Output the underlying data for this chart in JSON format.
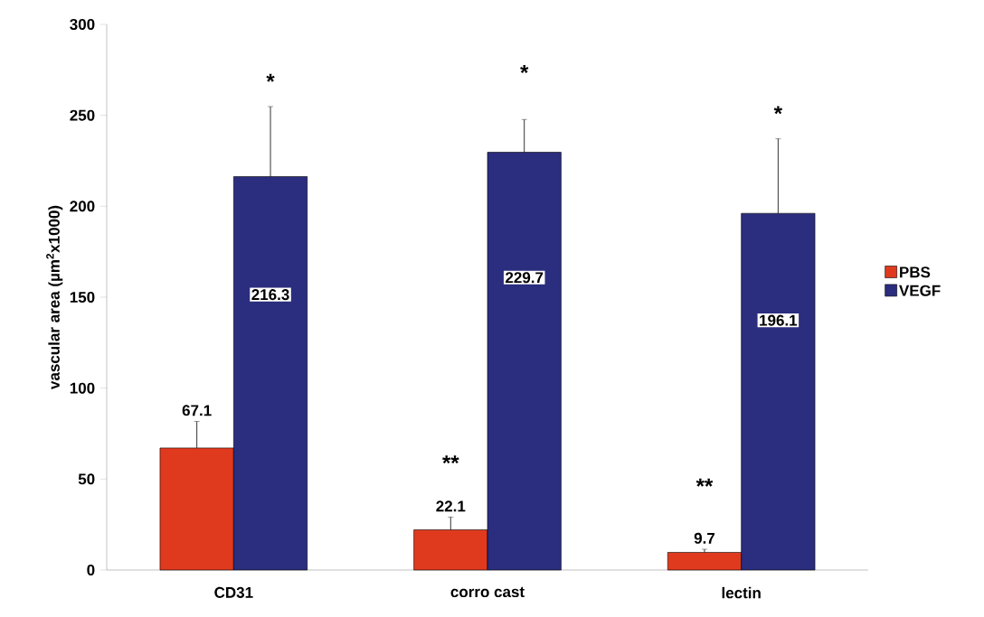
{
  "chart_data": {
    "type": "bar",
    "ylabel": "vascular area (µm$^{2}$x1000)",
    "categories": [
      "CD31",
      "corro cast",
      "lectin"
    ],
    "series": [
      {
        "name": "PBS",
        "color": "#e03a1e",
        "values": [
          67.1,
          22.1,
          9.7
        ],
        "errors": [
          14.6,
          7,
          1.7
        ]
      },
      {
        "name": "VEGF",
        "color": "#2b2d7e",
        "values": [
          216.3,
          229.7,
          196.1
        ],
        "errors": [
          38.5,
          18,
          41
        ]
      }
    ],
    "ylim": [
      0,
      300
    ],
    "yticks": [
      0,
      50,
      100,
      150,
      200,
      250,
      300
    ],
    "data_labels": true,
    "grid": false,
    "legend": "right",
    "annotations": [
      "*",
      "*",
      "*",
      "**",
      "**"
    ]
  }
}
